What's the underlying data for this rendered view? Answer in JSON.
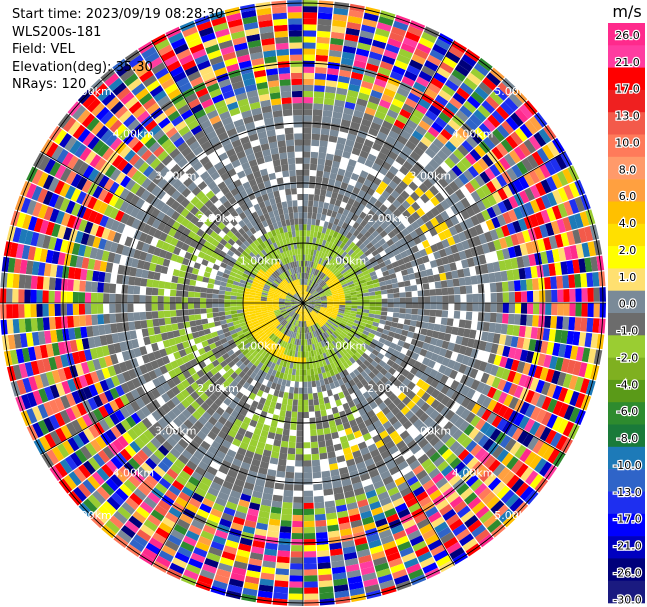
{
  "header": {
    "start_time_label": "Start time:",
    "start_time": "2023/09/19 08:28:30",
    "site": "WLS200s-181",
    "field_label": "Field:",
    "field": "VEL",
    "elevation_label": "Elevation(deg):",
    "elevation": "35.30",
    "nrays_label": "NRays:",
    "nrays": "120"
  },
  "chart_data": {
    "type": "heatmap",
    "projection": "polar PPI",
    "field": "VEL",
    "range_rings": [
      {
        "label": "1.00km",
        "km": 1
      },
      {
        "label": "2.00km",
        "km": 2
      },
      {
        "label": "3.00km",
        "km": 3
      },
      {
        "label": "4.00km",
        "km": 4
      },
      {
        "label": "5.00km",
        "km": 5
      }
    ],
    "radial_spokes_deg": [
      0,
      30,
      60,
      90,
      120,
      150,
      180,
      210,
      240,
      270,
      300,
      330
    ],
    "colorbar": {
      "unit": "m/s",
      "ticks": [
        "26.0",
        "21.0",
        "17.0",
        "13.0",
        "10.0",
        "8.0",
        "6.0",
        "4.0",
        "2.0",
        "1.0",
        "0.0",
        "-1.0",
        "-2.0",
        "-4.0",
        "-6.0",
        "-8.0",
        "-10.0",
        "-13.0",
        "-17.0",
        "-21.0",
        "-26.0",
        "-30.0"
      ],
      "colors": [
        "#ff2a8c",
        "#ff3ca0",
        "#ff0000",
        "#ef2020",
        "#f35a4a",
        "#ff7a5a",
        "#ff9a6a",
        "#ffa040",
        "#ffc000",
        "#ffe000",
        "#ffff00",
        "#ffe070",
        "#7a8a98",
        "#6c6c6c",
        "#9acd32",
        "#7fb020",
        "#5a9a18",
        "#2e8b2e",
        "#1a7a3a",
        "#1d7ab8",
        "#2f64c8",
        "#1e2ff0",
        "#0000ff",
        "#0000c0",
        "#00007a",
        "#1a1a80"
      ]
    },
    "velocity_regions": [
      {
        "range_km": [
          0,
          0.7
        ],
        "dominant": [
          "0.0",
          "2.0",
          "-2.0"
        ]
      },
      {
        "range_km": [
          0.7,
          1.4
        ],
        "dominant": [
          "-2.0",
          "0.0"
        ]
      },
      {
        "range_km": [
          1.4,
          3.2
        ],
        "dominant": [
          "0.0",
          "-1.0",
          "-2.0"
        ]
      },
      {
        "range_km": [
          3.2,
          6.0
        ],
        "dominant": [
          "noise"
        ]
      }
    ]
  }
}
